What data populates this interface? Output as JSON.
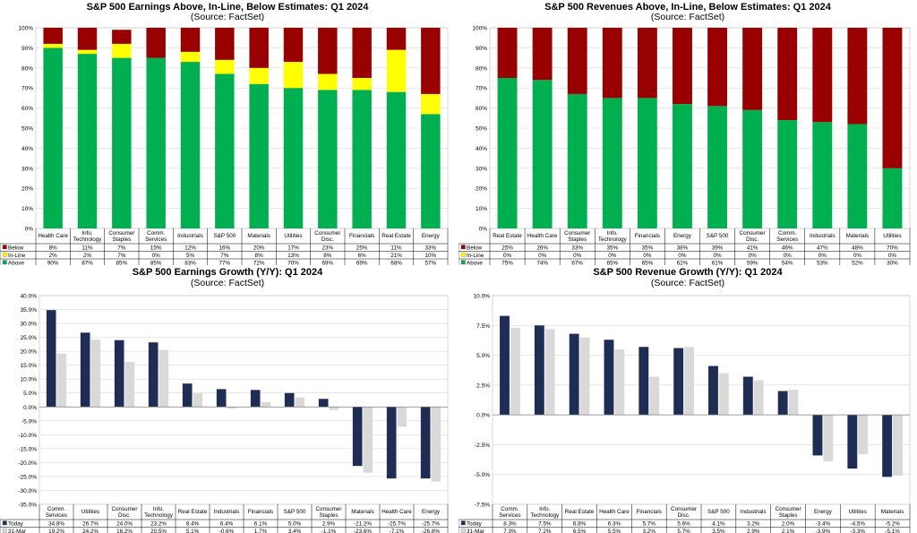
{
  "chart_data": [
    {
      "type": "bar",
      "stacked": true,
      "title": "S&P 500 Earnings Above, In-Line, Below Estimates: Q1 2024",
      "subtitle": "(Source: FactSet)",
      "categories": [
        "Health Care",
        "Info. Technology",
        "Consumer Staples",
        "Comm. Services",
        "Industrials",
        "S&P 500",
        "Materials",
        "Utilities",
        "Consumer Disc.",
        "Financials",
        "Real Estate",
        "Energy"
      ],
      "series": [
        {
          "name": "Above",
          "color": "#00b050",
          "values": [
            90,
            87,
            85,
            85,
            83,
            77,
            72,
            70,
            69,
            69,
            68,
            57
          ],
          "labels": [
            "90%",
            "87%",
            "85%",
            "85%",
            "83%",
            "77%",
            "72%",
            "70%",
            "69%",
            "69%",
            "68%",
            "57%"
          ]
        },
        {
          "name": "In-Line",
          "color": "#ffff00",
          "values": [
            2,
            2,
            7,
            0,
            5,
            7,
            8,
            13,
            8,
            6,
            21,
            10
          ],
          "labels": [
            "2%",
            "2%",
            "7%",
            "0%",
            "5%",
            "7%",
            "8%",
            "13%",
            "8%",
            "6%",
            "21%",
            "10%"
          ]
        },
        {
          "name": "Below",
          "color": "#990000",
          "values": [
            8,
            11,
            7,
            15,
            12,
            16,
            20,
            17,
            23,
            25,
            11,
            33
          ],
          "labels": [
            "8%",
            "11%",
            "7%",
            "15%",
            "12%",
            "16%",
            "20%",
            "17%",
            "23%",
            "25%",
            "11%",
            "33%"
          ]
        }
      ],
      "table_order": [
        "Below",
        "In-Line",
        "Above"
      ],
      "ylim": [
        0,
        100
      ],
      "yticks": [
        0,
        10,
        20,
        30,
        40,
        50,
        60,
        70,
        80,
        90,
        100
      ],
      "ytick_labels": [
        "0%",
        "10%",
        "20%",
        "30%",
        "40%",
        "50%",
        "60%",
        "70%",
        "80%",
        "90%",
        "100%"
      ]
    },
    {
      "type": "bar",
      "stacked": true,
      "title": "S&P 500 Revenues Above, In-Line, Below Estimates: Q1 2024",
      "subtitle": "(Source: FactSet)",
      "categories": [
        "Real Estate",
        "Health Care",
        "Consumer Staples",
        "Info. Technology",
        "Financials",
        "Energy",
        "S&P 500",
        "Consumer Disc.",
        "Comm. Services",
        "Industrials",
        "Materials",
        "Utilities"
      ],
      "series": [
        {
          "name": "Above",
          "color": "#00b050",
          "values": [
            75,
            74,
            67,
            65,
            65,
            62,
            61,
            59,
            54,
            53,
            52,
            30
          ],
          "labels": [
            "75%",
            "74%",
            "67%",
            "65%",
            "65%",
            "62%",
            "61%",
            "59%",
            "54%",
            "53%",
            "52%",
            "30%"
          ]
        },
        {
          "name": "In-Line",
          "color": "#ffff00",
          "values": [
            0,
            0,
            0,
            0,
            0,
            0,
            0,
            0,
            0,
            0,
            0,
            0
          ],
          "labels": [
            "0%",
            "0%",
            "0%",
            "0%",
            "0%",
            "0%",
            "0%",
            "0%",
            "0%",
            "0%",
            "0%",
            "0%"
          ]
        },
        {
          "name": "Below",
          "color": "#990000",
          "values": [
            25,
            26,
            33,
            35,
            35,
            38,
            39,
            41,
            46,
            47,
            48,
            70
          ],
          "labels": [
            "25%",
            "26%",
            "33%",
            "35%",
            "35%",
            "38%",
            "39%",
            "41%",
            "46%",
            "47%",
            "48%",
            "70%"
          ]
        }
      ],
      "table_order": [
        "Below",
        "In-Line",
        "Above"
      ],
      "ylim": [
        0,
        100
      ],
      "yticks": [
        0,
        10,
        20,
        30,
        40,
        50,
        60,
        70,
        80,
        90,
        100
      ],
      "ytick_labels": [
        "0%",
        "10%",
        "20%",
        "30%",
        "40%",
        "50%",
        "60%",
        "70%",
        "80%",
        "90%",
        "100%"
      ]
    },
    {
      "type": "bar",
      "title": "S&P 500 Earnings Growth (Y/Y): Q1 2024",
      "subtitle": "(Source: FactSet)",
      "categories": [
        "Comm. Services",
        "Utilities",
        "Consumer Disc.",
        "Info. Technology",
        "Real Estate",
        "Industrials",
        "Financials",
        "S&P 500",
        "Consumer Staples",
        "Materials",
        "Health Care",
        "Energy"
      ],
      "series": [
        {
          "name": "Today",
          "color": "#1f2d55",
          "values": [
            34.8,
            26.7,
            24.0,
            23.2,
            8.4,
            6.4,
            6.1,
            5.0,
            2.9,
            -21.2,
            -25.7,
            -25.7
          ],
          "labels": [
            "34.8%",
            "26.7%",
            "24.0%",
            "23.2%",
            "8.4%",
            "6.4%",
            "6.1%",
            "5.0%",
            "2.9%",
            "-21.2%",
            "-25.7%",
            "-25.7%"
          ]
        },
        {
          "name": "31-Mar",
          "color": "#d9d9d9",
          "values": [
            19.2,
            24.2,
            16.2,
            20.5,
            5.1,
            -0.6,
            1.7,
            3.4,
            -1.1,
            -23.6,
            -7.1,
            -26.8
          ],
          "labels": [
            "19.2%",
            "24.2%",
            "16.2%",
            "20.5%",
            "5.1%",
            "-0.6%",
            "1.7%",
            "3.4%",
            "-1.1%",
            "-23.6%",
            "-7.1%",
            "-26.8%"
          ]
        }
      ],
      "ylim": [
        -35,
        40
      ],
      "yticks": [
        -35,
        -30,
        -25,
        -20,
        -15,
        -10,
        -5,
        0,
        5,
        10,
        15,
        20,
        25,
        30,
        35,
        40
      ],
      "ytick_labels": [
        "-35.0%",
        "-30.0%",
        "-25.0%",
        "-20.0%",
        "-15.0%",
        "-10.0%",
        "-5.0%",
        "0.0%",
        "5.0%",
        "10.0%",
        "15.0%",
        "20.0%",
        "25.0%",
        "30.0%",
        "35.0%",
        "40.0%"
      ]
    },
    {
      "type": "bar",
      "title": "S&P 500 Revenue Growth (Y/Y): Q1 2024",
      "subtitle": "(Source: FactSet)",
      "categories": [
        "Comm. Services",
        "Info. Technology",
        "Real Estate",
        "Health Care",
        "Financials",
        "Consumer Disc.",
        "S&P 500",
        "Industrials",
        "Consumer Staples",
        "Energy",
        "Utilities",
        "Materials"
      ],
      "series": [
        {
          "name": "Today",
          "color": "#1f2d55",
          "values": [
            8.3,
            7.5,
            6.8,
            6.3,
            5.7,
            5.6,
            4.1,
            3.2,
            2.0,
            -3.4,
            -4.5,
            -5.2
          ],
          "labels": [
            "8.3%",
            "7.5%",
            "6.8%",
            "6.3%",
            "5.7%",
            "5.6%",
            "4.1%",
            "3.2%",
            "2.0%",
            "-3.4%",
            "-4.5%",
            "-5.2%"
          ]
        },
        {
          "name": "31-Mar",
          "color": "#d9d9d9",
          "values": [
            7.3,
            7.2,
            6.5,
            5.5,
            3.2,
            5.7,
            3.5,
            2.9,
            2.1,
            -3.9,
            -3.3,
            -5.1
          ],
          "labels": [
            "7.3%",
            "7.2%",
            "6.5%",
            "5.5%",
            "3.2%",
            "5.7%",
            "3.5%",
            "2.9%",
            "2.1%",
            "-3.9%",
            "-3.3%",
            "-5.1%"
          ]
        }
      ],
      "ylim": [
        -7.5,
        10
      ],
      "yticks": [
        -7.5,
        -5,
        -2.5,
        0,
        2.5,
        5,
        7.5,
        10
      ],
      "ytick_labels": [
        "-7.5%",
        "-5.0%",
        "-2.5%",
        "0.0%",
        "2.5%",
        "5.0%",
        "7.5%",
        "10.0%"
      ]
    }
  ]
}
